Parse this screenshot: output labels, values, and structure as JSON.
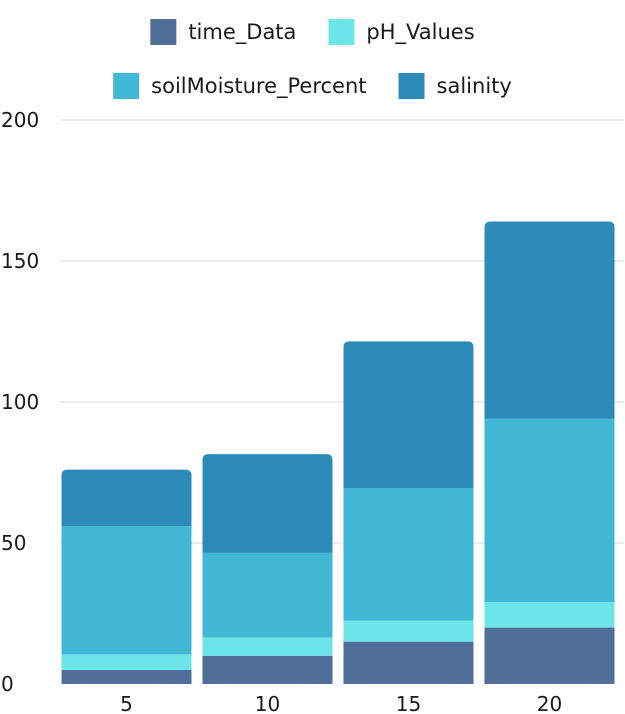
{
  "chart_data": {
    "type": "bar",
    "stacked": true,
    "categories": [
      "5",
      "10",
      "15",
      "20"
    ],
    "series": [
      {
        "name": "time_Data",
        "values": [
          5,
          10,
          15,
          20
        ],
        "color": "#4F6E9A"
      },
      {
        "name": "pH_Values",
        "values": [
          5.5,
          6.5,
          7.5,
          9
        ],
        "color": "#6CE5E8"
      },
      {
        "name": "soilMoisture_Percent",
        "values": [
          45.5,
          30,
          47,
          65
        ],
        "color": "#41B8D5"
      },
      {
        "name": "salinity",
        "values": [
          20,
          35,
          52,
          70
        ],
        "color": "#2D8BBA"
      }
    ],
    "ylim": [
      0,
      200
    ],
    "yticks": [
      "0",
      "50",
      "100",
      "150",
      "200"
    ],
    "grid": true,
    "legend_position": "top",
    "title": "",
    "xlabel": "",
    "ylabel": ""
  }
}
